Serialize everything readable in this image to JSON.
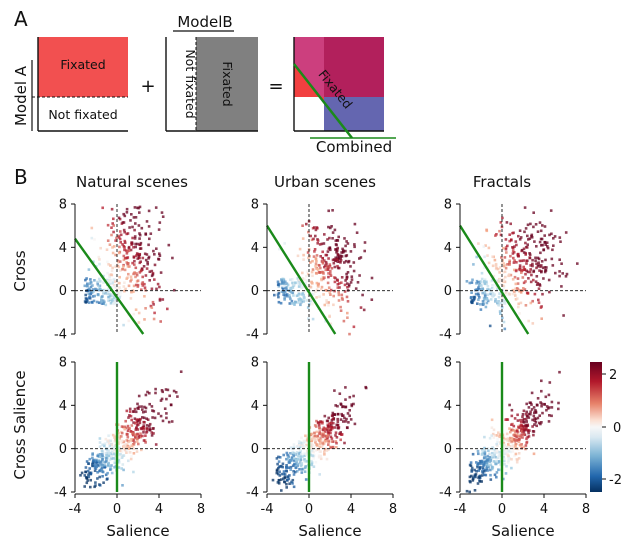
{
  "panel_a": {
    "letter": "A",
    "model_a_label": "Model A",
    "model_b_label": "ModelB",
    "fixated": "Fixated",
    "not_fixated": "Not fixated",
    "plus": "+",
    "equals": "=",
    "combined_fixated": "Fixated",
    "combined_label": "Combined"
  },
  "panel_b": {
    "letter": "B",
    "columns": [
      "Natural scenes",
      "Urban scenes",
      "Fractals"
    ],
    "row_labels": [
      "Cross",
      "Cross Salience"
    ],
    "xlabel": "Salience",
    "colorbar_ticks": [
      "2",
      "0",
      "-2"
    ],
    "colors": {
      "positive": "#b2182b",
      "negative": "#2166ac",
      "boundary": "#1a8a1a"
    }
  },
  "chart_data": [
    {
      "type": "scatter",
      "title": "Natural scenes",
      "ylabel": "Cross",
      "xlabel": "",
      "xlim": [
        -4,
        8
      ],
      "ylim": [
        -4,
        8
      ],
      "xticks": [],
      "yticks": [
        8,
        4,
        0,
        -4
      ],
      "boundary": {
        "x": [
          -4,
          2.5
        ],
        "y": [
          4.8,
          -4
        ]
      },
      "cluster_center": [
        1.2,
        2.8
      ],
      "cluster_spread": [
        1.6,
        2.6
      ]
    },
    {
      "type": "scatter",
      "title": "Urban scenes",
      "ylabel": "",
      "xlabel": "",
      "xlim": [
        -4,
        8
      ],
      "ylim": [
        -4,
        8
      ],
      "xticks": [],
      "yticks": [
        8,
        4,
        0,
        -4
      ],
      "boundary": {
        "x": [
          -4,
          2.5
        ],
        "y": [
          6,
          -4
        ]
      },
      "cluster_center": [
        1.8,
        2.0
      ],
      "cluster_spread": [
        1.6,
        2.4
      ]
    },
    {
      "type": "scatter",
      "title": "Fractals",
      "ylabel": "",
      "xlabel": "",
      "xlim": [
        -4,
        8
      ],
      "ylim": [
        -4,
        8
      ],
      "xticks": [],
      "yticks": [
        8,
        4,
        0,
        -4
      ],
      "boundary": {
        "x": [
          -4,
          2.5
        ],
        "y": [
          6,
          -4
        ]
      },
      "cluster_center": [
        1.8,
        2.4
      ],
      "cluster_spread": [
        1.8,
        2.2
      ]
    },
    {
      "type": "scatter",
      "title": "",
      "ylabel": "Cross Salience",
      "xlabel": "Salience",
      "xlim": [
        -4,
        8
      ],
      "ylim": [
        -4,
        8
      ],
      "xticks": [
        -4,
        0,
        4,
        8
      ],
      "yticks": [
        8,
        4,
        0,
        -4
      ],
      "boundary": {
        "x": [
          0,
          0
        ],
        "y": [
          -4,
          8
        ]
      },
      "cluster_center": [
        0.8,
        1.2
      ],
      "cluster_spread": [
        1.8,
        1.8
      ]
    },
    {
      "type": "scatter",
      "title": "",
      "ylabel": "",
      "xlabel": "Salience",
      "xlim": [
        -4,
        8
      ],
      "ylim": [
        -4,
        8
      ],
      "xticks": [
        -4,
        0,
        4,
        8
      ],
      "yticks": [
        8,
        4,
        0,
        -4
      ],
      "boundary": {
        "x": [
          0,
          0
        ],
        "y": [
          -4,
          8
        ]
      },
      "cluster_center": [
        1.0,
        1.2
      ],
      "cluster_spread": [
        1.6,
        1.6
      ]
    },
    {
      "type": "scatter",
      "title": "",
      "ylabel": "",
      "xlabel": "Salience",
      "xlim": [
        -4,
        8
      ],
      "ylim": [
        -4,
        8
      ],
      "xticks": [
        -4,
        0,
        4,
        8
      ],
      "yticks": [
        8,
        4,
        0,
        -4
      ],
      "boundary": {
        "x": [
          0,
          0
        ],
        "y": [
          -4,
          8
        ]
      },
      "cluster_center": [
        1.2,
        1.6
      ],
      "cluster_spread": [
        1.8,
        1.8
      ]
    }
  ]
}
